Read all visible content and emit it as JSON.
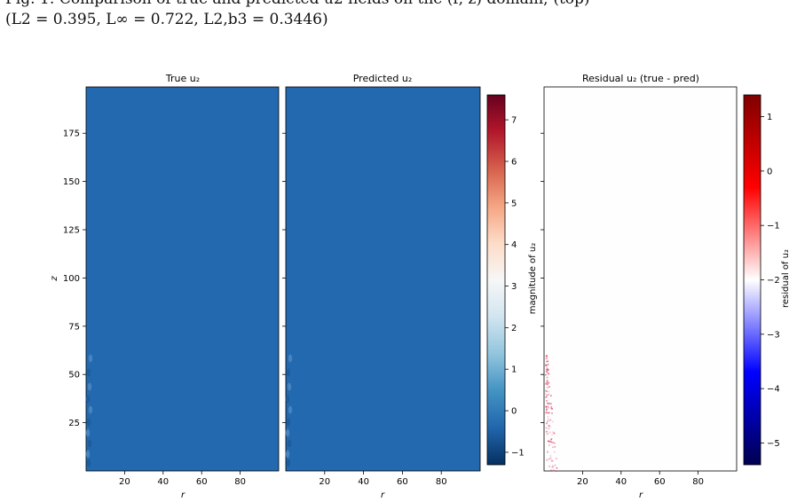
{
  "caption": {
    "line1": "Fig. 1: Comparison of true and predicted u2 fields on the (r, z) domain; (top)",
    "line2": "(L2 = 0.395, L∞ = 0.722, L2,b3 = 0.3446)"
  },
  "colors": {
    "field_blue": "#2369af",
    "cbar1_stops": [
      "#053061",
      "#2166ac",
      "#4393c3",
      "#92c5de",
      "#d1e5f0",
      "#f7f7f7",
      "#fddbc7",
      "#f4a582",
      "#d6604d",
      "#b2182b",
      "#67001f"
    ],
    "cbar2_stops": [
      "#000050",
      "#0000ff",
      "#ffffff",
      "#ff0000",
      "#800000"
    ],
    "residual_speck": "#e0426a"
  },
  "chart_data": [
    {
      "type": "heatmap",
      "title": "True u₂",
      "xlabel": "r",
      "ylabel": "z",
      "xlim": [
        0,
        100
      ],
      "ylim": [
        0,
        199
      ],
      "xticks": [
        20,
        40,
        60,
        80
      ],
      "yticks": [
        25,
        50,
        75,
        100,
        125,
        150,
        175
      ],
      "field_value_approx": -0.1,
      "note_values": "near-uniform field ≈ -0.1, small disturbances near r≈0 for z<60"
    },
    {
      "type": "heatmap",
      "title": "Predicted u₂",
      "xlabel": "r",
      "xlim": [
        0,
        100
      ],
      "ylim": [
        0,
        199
      ],
      "xticks": [
        20,
        40,
        60,
        80
      ],
      "yticks": [
        25,
        50,
        75,
        100,
        125,
        150,
        175
      ],
      "field_value_approx": -0.1
    },
    {
      "type": "heatmap",
      "title": "Residual u₂ (true - pred)",
      "xlabel": "r",
      "xlim": [
        0,
        100
      ],
      "ylim": [
        0,
        199
      ],
      "xticks": [
        20,
        40,
        60,
        80
      ],
      "yticks": [
        25,
        50,
        75,
        100,
        125,
        150,
        175
      ],
      "field_value_approx": 0,
      "hotspot": {
        "r_range": [
          0,
          5
        ],
        "z_range": [
          0,
          60
        ],
        "max_value_approx": 0.5
      }
    }
  ],
  "colorbars": [
    {
      "label": "magnitude of u₂",
      "range": [
        -1.3,
        7.6
      ],
      "ticks": [
        -1,
        0,
        1,
        2,
        3,
        4,
        5,
        6,
        7
      ]
    },
    {
      "label": "residual of u₂",
      "range": [
        -5.4,
        1.4
      ],
      "ticks": [
        -5,
        -4,
        -3,
        -2,
        -1,
        0,
        1
      ]
    }
  ]
}
